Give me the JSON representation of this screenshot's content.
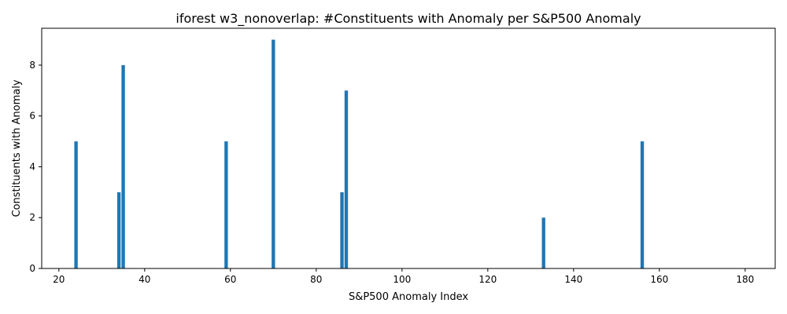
{
  "chart_data": {
    "type": "bar",
    "title": "iforest w3_nonoverlap: #Constituents with Anomaly per S&P500 Anomaly",
    "xlabel": "S&P500 Anomaly Index",
    "ylabel": "Constituents with Anomaly",
    "x": [
      24,
      34,
      35,
      59,
      70,
      86,
      87,
      133,
      156
    ],
    "values": [
      5,
      3,
      8,
      5,
      9,
      3,
      7,
      2,
      5
    ],
    "xlim": [
      16,
      187
    ],
    "ylim": [
      0,
      9.45
    ],
    "xticks": [
      20,
      40,
      60,
      80,
      100,
      120,
      140,
      160,
      180
    ],
    "yticks": [
      0,
      2,
      4,
      6,
      8
    ],
    "bar_width": 0.8,
    "bar_color": "#1f77b4",
    "grid": false,
    "legend": "none"
  }
}
